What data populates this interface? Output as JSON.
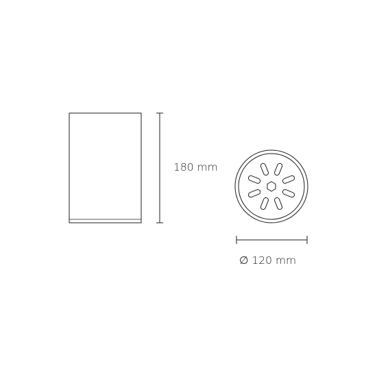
{
  "diagram": {
    "height_label": "180 mm",
    "diameter_label": "∅ 120 mm",
    "line_color": "#1c1c1c",
    "background_color": "#ffffff"
  }
}
